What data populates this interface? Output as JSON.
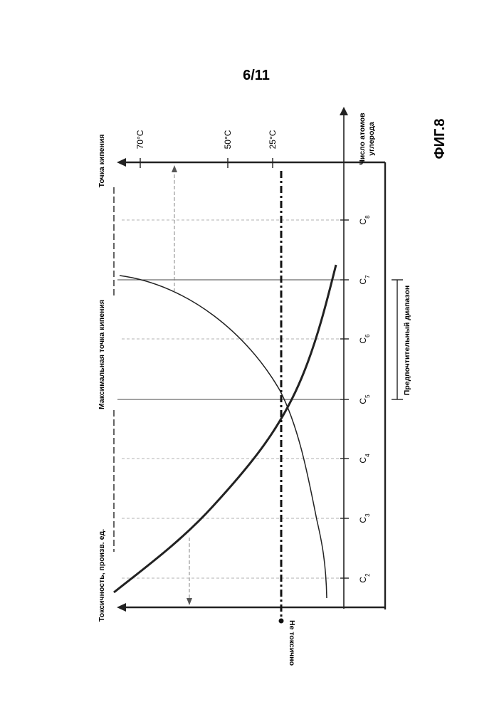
{
  "page_number": "6/11",
  "figure_label": "ФИГ.8",
  "labels": {
    "x_axis": [
      "Число атомов",
      "углерода"
    ],
    "boiling_axis": "Точка кипения",
    "toxicity_axis": "Токсичность, произв. ед.",
    "max_boiling": "Максимальная точка кипения",
    "preferred_range": "Предпочтительный диапазон",
    "non_toxic": "Не токсично"
  },
  "chart_data": {
    "type": "line",
    "x_categories": [
      "C2",
      "C3",
      "C4",
      "C5",
      "C6",
      "C7",
      "C8"
    ],
    "tick_labels": [
      {
        "base": "C",
        "sub": "2"
      },
      {
        "base": "C",
        "sub": "3"
      },
      {
        "base": "C",
        "sub": "4"
      },
      {
        "base": "C",
        "sub": "5"
      },
      {
        "base": "C",
        "sub": "6"
      },
      {
        "base": "C",
        "sub": "7"
      },
      {
        "base": "C",
        "sub": "8"
      }
    ],
    "temperature_ticks": [
      "70°C",
      "50°C",
      "25°C"
    ],
    "preferred_range": [
      "C5",
      "C7"
    ],
    "series": []
  }
}
